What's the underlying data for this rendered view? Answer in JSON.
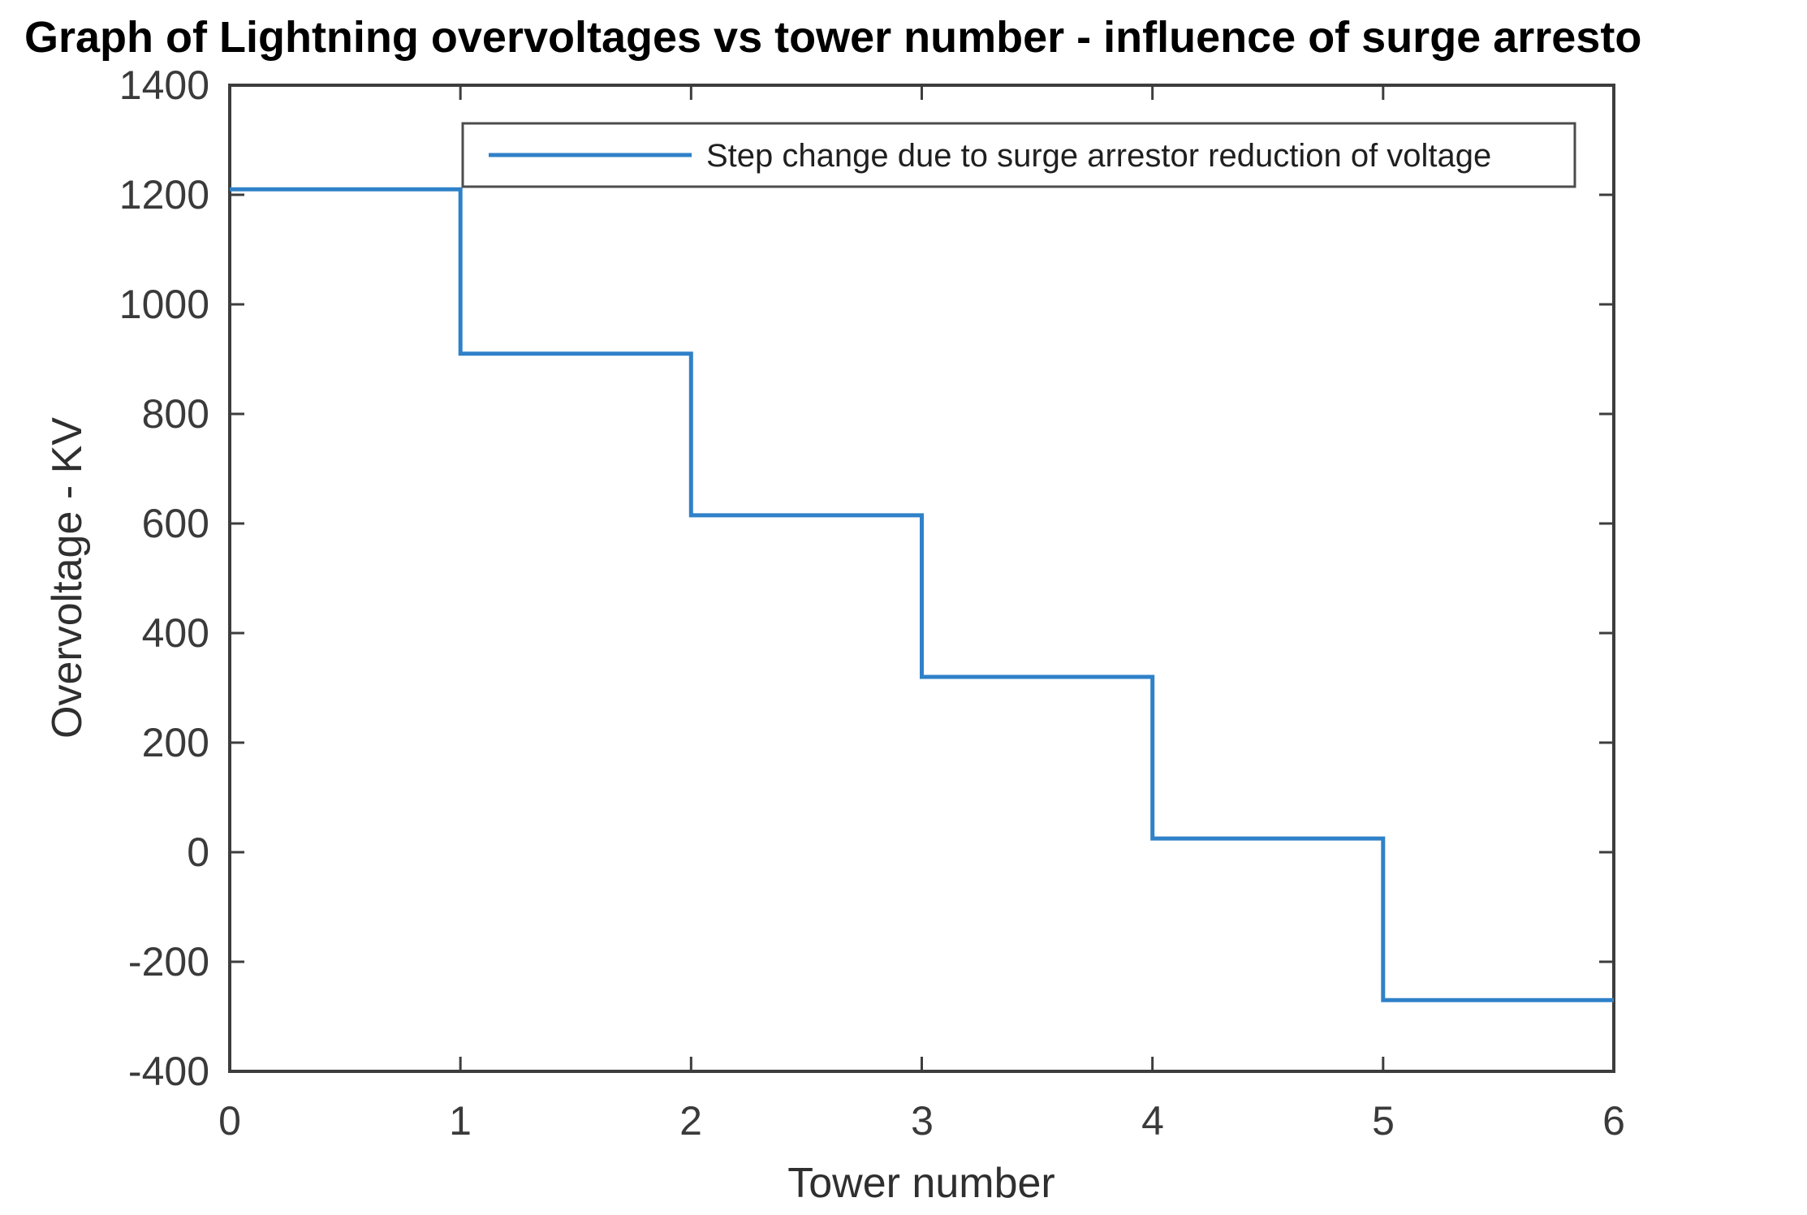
{
  "title": "Graph of Lightning overvoltages vs tower number - influence of surge arresto",
  "colors": {
    "line_blue": "#2f81c8",
    "axis_frame": "#3d3d3d",
    "tick_label": "#3a3a3a",
    "legend_border": "#4c4c4c",
    "background": "#ffffff"
  },
  "chart_data": {
    "type": "line",
    "step_mode": "post",
    "title": "Graph of Lightning overvoltages vs tower number - influence of surge arresto",
    "xlabel": "Tower number",
    "ylabel": "Overvoltage - KV",
    "xlim": [
      0,
      6
    ],
    "ylim": [
      -400,
      1400
    ],
    "grid": false,
    "box": true,
    "xticks": [
      "0",
      "1",
      "2",
      "3",
      "4",
      "5",
      "6"
    ],
    "yticks": [
      "1400",
      "1200",
      "1000",
      "800",
      "600",
      "400",
      "200",
      "0",
      "-200",
      "-400"
    ],
    "legend": {
      "position": "top-inside",
      "entries": [
        "Step change due to surge arrestor reduction of voltage"
      ]
    },
    "series": [
      {
        "name": "Step change due to surge arrestor reduction of voltage",
        "color": "#2f81c8",
        "x": [
          0,
          1,
          2,
          3,
          4,
          5,
          6
        ],
        "levels": [
          1210,
          910,
          615,
          320,
          25,
          -270
        ],
        "description": "Constant level between consecutive tower numbers, vertical drop at each tower"
      }
    ]
  }
}
